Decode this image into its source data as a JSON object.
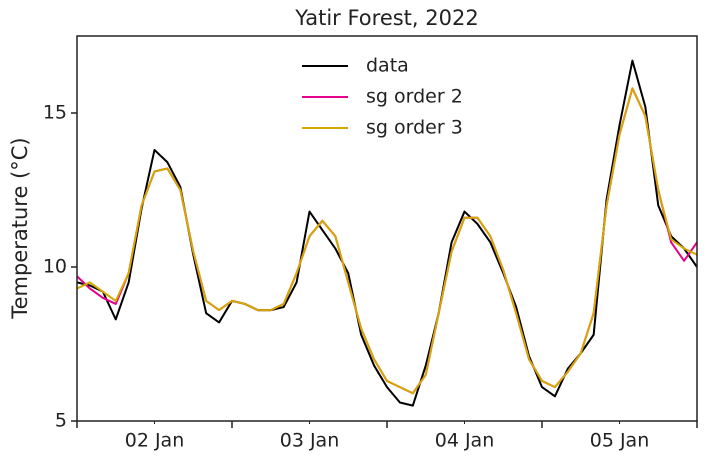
{
  "chart_data": {
    "type": "line",
    "title": "Yatir Forest, 2022",
    "ylabel": "Temperature (°C)",
    "x": [
      2,
      2.0833,
      2.1667,
      2.25,
      2.3333,
      2.4167,
      2.5,
      2.5833,
      2.6667,
      2.75,
      2.8333,
      2.9167,
      3,
      3.0833,
      3.1667,
      3.25,
      3.3333,
      3.4167,
      3.5,
      3.5833,
      3.6667,
      3.75,
      3.8333,
      3.9167,
      4,
      4.0833,
      4.1667,
      4.25,
      4.3333,
      4.4167,
      4.5,
      4.5833,
      4.6667,
      4.75,
      4.8333,
      4.9167,
      5,
      5.0833,
      5.1667,
      5.25,
      5.3333,
      5.4167,
      5.5,
      5.5833,
      5.6667,
      5.75,
      5.8333,
      5.9167,
      6
    ],
    "series": [
      {
        "name": "data",
        "color": "#000000",
        "values": [
          9.5,
          9.4,
          9.2,
          8.3,
          9.5,
          11.9,
          13.8,
          13.4,
          12.6,
          10.4,
          8.5,
          8.2,
          8.9,
          8.8,
          8.6,
          8.6,
          8.7,
          9.5,
          11.8,
          11.2,
          10.6,
          9.8,
          7.8,
          6.8,
          6.1,
          5.6,
          5.5,
          6.8,
          8.5,
          10.8,
          11.8,
          11.4,
          10.8,
          9.8,
          8.7,
          7.1,
          6.1,
          5.8,
          6.7,
          7.2,
          7.8,
          12.2,
          14.6,
          16.7,
          15.2,
          12.0,
          11.0,
          10.6,
          10.0
        ]
      },
      {
        "name": "sg order 2",
        "color": "#e7008a",
        "values": [
          9.7,
          9.3,
          9.0,
          8.8,
          9.8,
          12.0,
          13.1,
          13.2,
          12.5,
          10.5,
          8.9,
          8.6,
          8.9,
          8.8,
          8.6,
          8.6,
          8.8,
          9.8,
          11.0,
          11.5,
          11.0,
          9.5,
          8.0,
          7.0,
          6.3,
          6.1,
          5.9,
          6.5,
          8.5,
          10.5,
          11.6,
          11.6,
          11.0,
          9.9,
          8.5,
          7.0,
          6.3,
          6.1,
          6.6,
          7.2,
          8.5,
          12.0,
          14.3,
          15.8,
          14.9,
          12.5,
          10.8,
          10.2,
          10.8
        ]
      },
      {
        "name": "sg order 3",
        "color": "#d4a800",
        "values": [
          9.3,
          9.5,
          9.2,
          8.9,
          9.8,
          12.0,
          13.1,
          13.2,
          12.5,
          10.5,
          8.9,
          8.6,
          8.9,
          8.8,
          8.6,
          8.6,
          8.8,
          9.8,
          11.0,
          11.5,
          11.0,
          9.5,
          8.0,
          7.0,
          6.3,
          6.1,
          5.9,
          6.5,
          8.5,
          10.5,
          11.6,
          11.6,
          11.0,
          9.9,
          8.5,
          7.0,
          6.3,
          6.1,
          6.6,
          7.2,
          8.5,
          12.0,
          14.3,
          15.8,
          14.9,
          12.5,
          10.9,
          10.6,
          10.4
        ]
      }
    ],
    "xlim": [
      2,
      6
    ],
    "ylim": [
      5,
      17.5
    ],
    "xticks": [
      {
        "value": 2.5,
        "label": "02 Jan"
      },
      {
        "value": 3.5,
        "label": "03 Jan"
      },
      {
        "value": 4.5,
        "label": "04 Jan"
      },
      {
        "value": 5.5,
        "label": "05 Jan"
      }
    ],
    "xmajor_ticks": [
      2,
      3,
      4,
      5,
      6
    ],
    "yticks": [
      5,
      10,
      15
    ],
    "legend": "upper center",
    "grid": false
  }
}
